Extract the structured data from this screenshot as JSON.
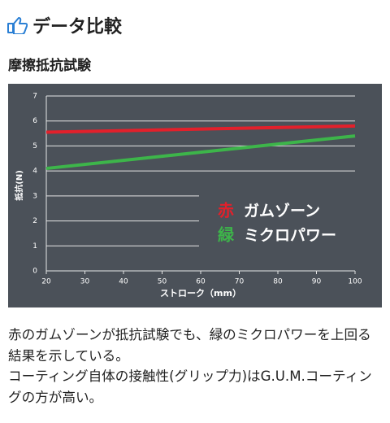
{
  "header": {
    "title": "データ比較"
  },
  "section": {
    "title": "摩擦抵抗試験"
  },
  "chart_data": {
    "type": "line",
    "xlabel": "ストローク（mm）",
    "ylabel": "抵抗(N)",
    "x": [
      20,
      100
    ],
    "xlim": [
      20,
      100
    ],
    "xticks": [
      20,
      30,
      40,
      50,
      60,
      70,
      80,
      90,
      100
    ],
    "ylim": [
      0,
      7
    ],
    "yticks": [
      0,
      1,
      2,
      3,
      4,
      5,
      6,
      7
    ],
    "grid": true,
    "series": [
      {
        "name": "ガムゾーン",
        "legend_prefix": "赤",
        "color": "#e3202b",
        "values": [
          5.55,
          5.8
        ]
      },
      {
        "name": "ミクロパワー",
        "legend_prefix": "緑",
        "color": "#3db54a",
        "values": [
          4.1,
          5.4
        ]
      }
    ]
  },
  "paragraphs": [
    "赤のガムゾーンが抵抗試験でも、緑のミクロパワーを上回る結果を示している。",
    "コーティング自体の接触性(グリップ力)はG.U.M.コーティングの方が高い。"
  ]
}
